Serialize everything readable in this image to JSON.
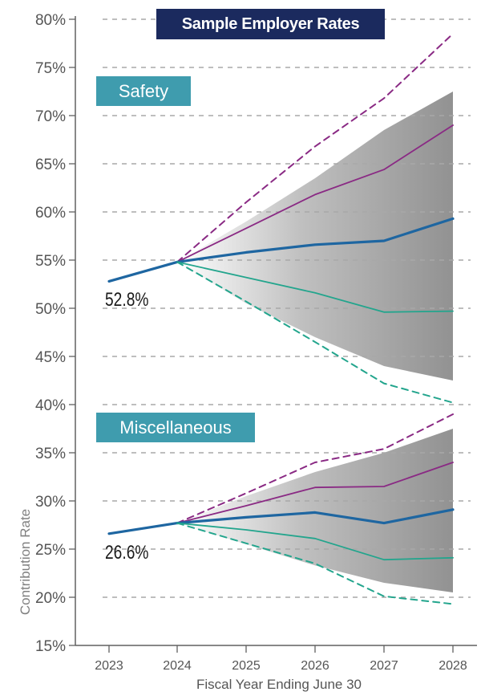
{
  "colors": {
    "title_bg": "#1b2a5e",
    "label_bg": "#3f9cae",
    "optimistic": "#23a58d",
    "expected": "#1e66a1",
    "pessimistic": "#8a2a84",
    "band": "#8c8c8c",
    "grid": "#a8a8a8",
    "axis": "#606060"
  },
  "chart_data": {
    "type": "line",
    "title": "Sample Employer Rates",
    "xlabel": "Fiscal Year Ending June 30",
    "ylabel": "Contribution Rate",
    "x": [
      "2023",
      "2024",
      "2025",
      "2026",
      "2027",
      "2028"
    ],
    "ylim": [
      15,
      80
    ],
    "yticks": [
      "15%",
      "20%",
      "25%",
      "30%",
      "35%",
      "40%",
      "45%",
      "50%",
      "55%",
      "60%",
      "65%",
      "70%",
      "75%",
      "80%"
    ],
    "grid": "horizontal dashed",
    "groups": [
      {
        "label": "Safety",
        "start_label": "52.8%",
        "shaded_band": {
          "upper": [
            null,
            54.8,
            59.0,
            63.5,
            68.5,
            72.5
          ],
          "lower": [
            null,
            54.8,
            50.5,
            47.0,
            44.0,
            42.5
          ]
        },
        "series": [
          {
            "role": "dashed-upper",
            "values": [
              null,
              54.8,
              61.0,
              66.8,
              71.8,
              78.5
            ]
          },
          {
            "role": "upper",
            "values": [
              null,
              54.8,
              58.3,
              61.8,
              64.4,
              69.0
            ]
          },
          {
            "role": "median",
            "values": [
              52.8,
              54.8,
              55.8,
              56.6,
              57.0,
              59.3
            ]
          },
          {
            "role": "lower",
            "values": [
              null,
              54.8,
              53.2,
              51.6,
              49.6,
              49.7
            ]
          },
          {
            "role": "dashed-lower",
            "values": [
              null,
              54.8,
              50.7,
              46.5,
              42.2,
              40.2
            ]
          }
        ]
      },
      {
        "label": "Miscellaneous",
        "start_label": "26.6%",
        "shaded_band": {
          "upper": [
            null,
            27.7,
            30.5,
            33.0,
            35.0,
            37.5
          ],
          "lower": [
            null,
            27.7,
            25.5,
            23.3,
            21.5,
            20.5
          ]
        },
        "series": [
          {
            "role": "dashed-upper",
            "values": [
              null,
              27.7,
              30.8,
              34.0,
              35.4,
              39.0
            ]
          },
          {
            "role": "upper",
            "values": [
              null,
              27.7,
              29.5,
              31.4,
              31.5,
              34.0
            ]
          },
          {
            "role": "median",
            "values": [
              26.6,
              27.7,
              28.3,
              28.8,
              27.7,
              29.1
            ]
          },
          {
            "role": "lower",
            "values": [
              null,
              27.7,
              27.0,
              26.1,
              23.9,
              24.1
            ]
          },
          {
            "role": "dashed-lower",
            "values": [
              null,
              27.7,
              25.6,
              23.5,
              20.1,
              19.3
            ]
          }
        ]
      }
    ]
  }
}
